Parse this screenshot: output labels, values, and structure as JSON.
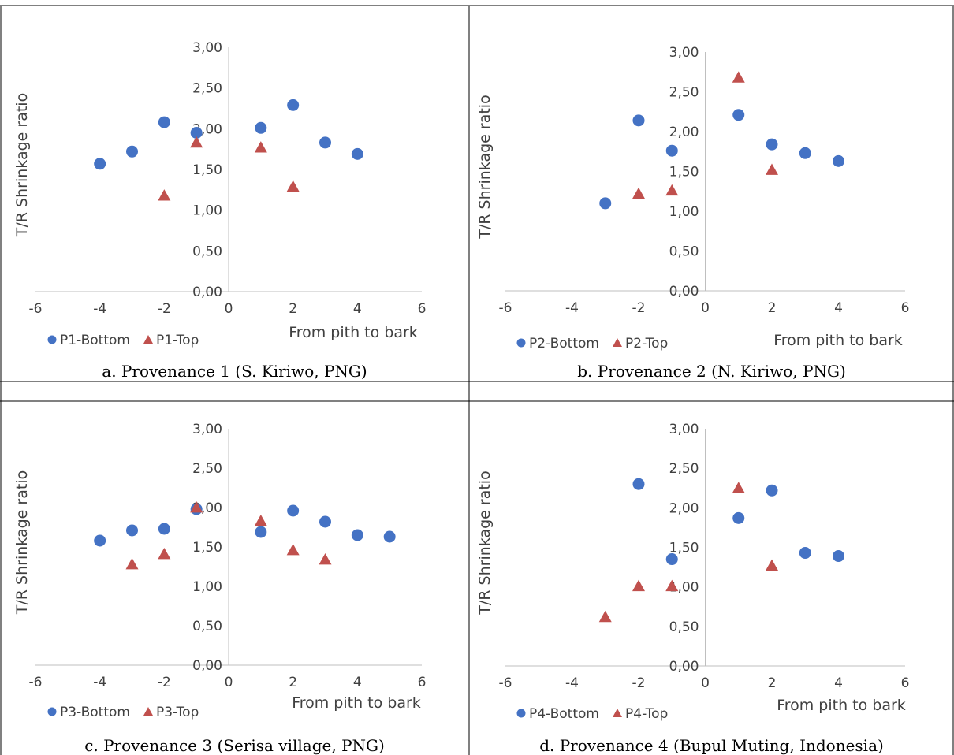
{
  "colors": {
    "bottom": "#4472C4",
    "top": "#C0504D",
    "axis": "#BFBFBF",
    "text": "#404040",
    "border": "#000000"
  },
  "chart_data": [
    {
      "type": "scatter",
      "caption": "a. Provenance 1 (S. Kiriwo, PNG)",
      "xlabel": "From pith to bark",
      "ylabel": "T/R Shrinkage ratio",
      "xlim": [
        -6,
        6
      ],
      "ylim": [
        0,
        3
      ],
      "xticks": [
        "-6",
        "-4",
        "-2",
        "0",
        "2",
        "4",
        "6"
      ],
      "yticks": [
        "0,00",
        "0,50",
        "1,00",
        "1,50",
        "2,00",
        "2,50",
        "3,00"
      ],
      "legend_position": "bottom-left",
      "series": [
        {
          "name": "P1-Bottom",
          "marker": "circle",
          "points": [
            [
              -4,
              1.57
            ],
            [
              -3,
              1.72
            ],
            [
              -2,
              2.08
            ],
            [
              -1,
              1.95
            ],
            [
              1,
              2.01
            ],
            [
              2,
              2.29
            ],
            [
              3,
              1.83
            ],
            [
              4,
              1.69
            ]
          ]
        },
        {
          "name": "P1-Top",
          "marker": "triangle",
          "points": [
            [
              -2,
              1.18
            ],
            [
              -1,
              1.83
            ],
            [
              1,
              1.77
            ],
            [
              2,
              1.29
            ]
          ]
        }
      ]
    },
    {
      "type": "scatter",
      "caption": "b. Provenance 2 (N. Kiriwo, PNG)",
      "xlabel": "From pith to bark",
      "ylabel": "T/R Shrinkage ratio",
      "xlim": [
        -6,
        6
      ],
      "ylim": [
        0,
        3
      ],
      "xticks": [
        "-6",
        "-4",
        "-2",
        "0",
        "2",
        "4",
        "6"
      ],
      "yticks": [
        "0,00",
        "0,50",
        "1,00",
        "1,50",
        "2,00",
        "2,50",
        "3,00"
      ],
      "legend_position": "bottom-left",
      "series": [
        {
          "name": "P2-Bottom",
          "marker": "circle",
          "points": [
            [
              -3,
              1.1
            ],
            [
              -2,
              2.14
            ],
            [
              -1,
              1.76
            ],
            [
              1,
              2.21
            ],
            [
              2,
              1.84
            ],
            [
              3,
              1.73
            ],
            [
              4,
              1.63
            ]
          ]
        },
        {
          "name": "P2-Top",
          "marker": "triangle",
          "points": [
            [
              -2,
              1.22
            ],
            [
              -1,
              1.26
            ],
            [
              1,
              2.68
            ],
            [
              2,
              1.52
            ]
          ]
        }
      ]
    },
    {
      "type": "scatter",
      "caption": "c. Provenance 3 (Serisa village, PNG)",
      "xlabel": "From pith to bark",
      "ylabel": "T/R Shrinkage ratio",
      "xlim": [
        -6,
        6
      ],
      "ylim": [
        0,
        3
      ],
      "xticks": [
        "-6",
        "-4",
        "-2",
        "0",
        "2",
        "4",
        "6"
      ],
      "yticks": [
        "0,00",
        "0,50",
        "1,00",
        "1,50",
        "2,00",
        "2,50",
        "3,00"
      ],
      "legend_position": "bottom-left",
      "series": [
        {
          "name": "P3-Bottom",
          "marker": "circle",
          "points": [
            [
              -4,
              1.58
            ],
            [
              -3,
              1.71
            ],
            [
              -2,
              1.73
            ],
            [
              -1,
              1.98
            ],
            [
              1,
              1.69
            ],
            [
              2,
              1.96
            ],
            [
              3,
              1.82
            ],
            [
              4,
              1.65
            ],
            [
              5,
              1.63
            ]
          ]
        },
        {
          "name": "P3-Top",
          "marker": "triangle",
          "points": [
            [
              -3,
              1.28
            ],
            [
              -2,
              1.41
            ],
            [
              -1,
              2.0
            ],
            [
              1,
              1.83
            ],
            [
              2,
              1.46
            ],
            [
              3,
              1.34
            ]
          ]
        }
      ]
    },
    {
      "type": "scatter",
      "caption": "d. Provenance 4 (Bupul Muting, Indonesia)",
      "xlabel": "From pith to bark",
      "ylabel": "T/R Shrinkage ratio",
      "xlim": [
        -6,
        6
      ],
      "ylim": [
        0,
        3
      ],
      "xticks": [
        "-6",
        "-4",
        "-2",
        "0",
        "2",
        "4",
        "6"
      ],
      "yticks": [
        "0,00",
        "0,50",
        "1,00",
        "1,50",
        "2,00",
        "2,50",
        "3,00"
      ],
      "legend_position": "bottom-left",
      "series": [
        {
          "name": "P4-Bottom",
          "marker": "circle",
          "points": [
            [
              -2,
              2.3
            ],
            [
              -1,
              1.35
            ],
            [
              1,
              1.87
            ],
            [
              2,
              2.22
            ],
            [
              3,
              1.43
            ],
            [
              4,
              1.39
            ]
          ]
        },
        {
          "name": "P4-Top",
          "marker": "triangle",
          "points": [
            [
              -3,
              0.62
            ],
            [
              -2,
              1.01
            ],
            [
              -1,
              1.01
            ],
            [
              1,
              2.25
            ],
            [
              2,
              1.27
            ]
          ]
        }
      ]
    }
  ]
}
